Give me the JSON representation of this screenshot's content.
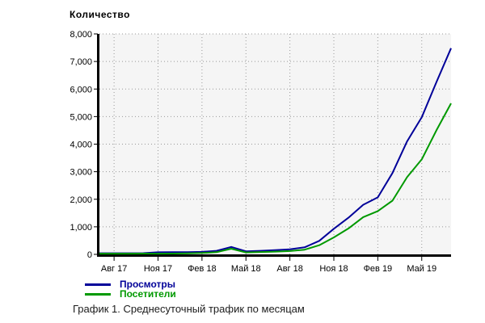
{
  "chart": {
    "title": "Количество",
    "caption": "График 1. Среднесуточный трафик по месяцам",
    "legend": [
      {
        "label": "Просмотры",
        "color": "#000099"
      },
      {
        "label": "Посетители",
        "color": "#009900"
      }
    ]
  },
  "chart_data": {
    "type": "line",
    "title": "Количество",
    "xlabel": "",
    "ylabel": "Количество",
    "ylim": [
      0,
      8000
    ],
    "grid": "dotted",
    "legend_position": "bottom-left",
    "x": [
      "Июл 17",
      "Авг 17",
      "Сен 17",
      "Окт 17",
      "Ноя 17",
      "Дек 17",
      "Янв 18",
      "Фев 18",
      "Мар 18",
      "Апр 18",
      "Май 18",
      "Июн 18",
      "Июл 18",
      "Авг 18",
      "Сен 18",
      "Окт 18",
      "Ноя 18",
      "Дек 18",
      "Янв 19",
      "Фев 19",
      "Мар 19",
      "Апр 19",
      "Май 19",
      "Июн 19",
      "Июл 19"
    ],
    "x_tick_indices": [
      1,
      4,
      7,
      10,
      13,
      16,
      19,
      22
    ],
    "x_tick_labels": [
      "Авг 17",
      "Ноя 17",
      "Фев 18",
      "Май 18",
      "Авг 18",
      "Ноя 18",
      "Фев 19",
      "Май 19"
    ],
    "y_ticks": [
      0,
      1000,
      2000,
      3000,
      4000,
      5000,
      6000,
      7000,
      8000
    ],
    "y_tick_labels": [
      "0",
      "1,000",
      "2,000",
      "3,000",
      "4,000",
      "5,000",
      "6,000",
      "7,000",
      "8,000"
    ],
    "series": [
      {
        "name": "Просмотры",
        "color": "#000099",
        "values": [
          40,
          40,
          40,
          45,
          75,
          80,
          80,
          90,
          130,
          270,
          110,
          130,
          155,
          185,
          255,
          490,
          930,
          1330,
          1800,
          2070,
          2950,
          4100,
          4980,
          6250,
          7480
        ]
      },
      {
        "name": "Посетители",
        "color": "#009900",
        "values": [
          25,
          25,
          25,
          30,
          25,
          30,
          35,
          50,
          80,
          205,
          70,
          85,
          100,
          120,
          170,
          330,
          615,
          940,
          1350,
          1570,
          1950,
          2800,
          3450,
          4500,
          5480
        ]
      }
    ]
  },
  "colors": {
    "plot_background": "#f5f5f5",
    "gridline": "#999999",
    "axis": "#000000",
    "tick_label": "#000000"
  }
}
